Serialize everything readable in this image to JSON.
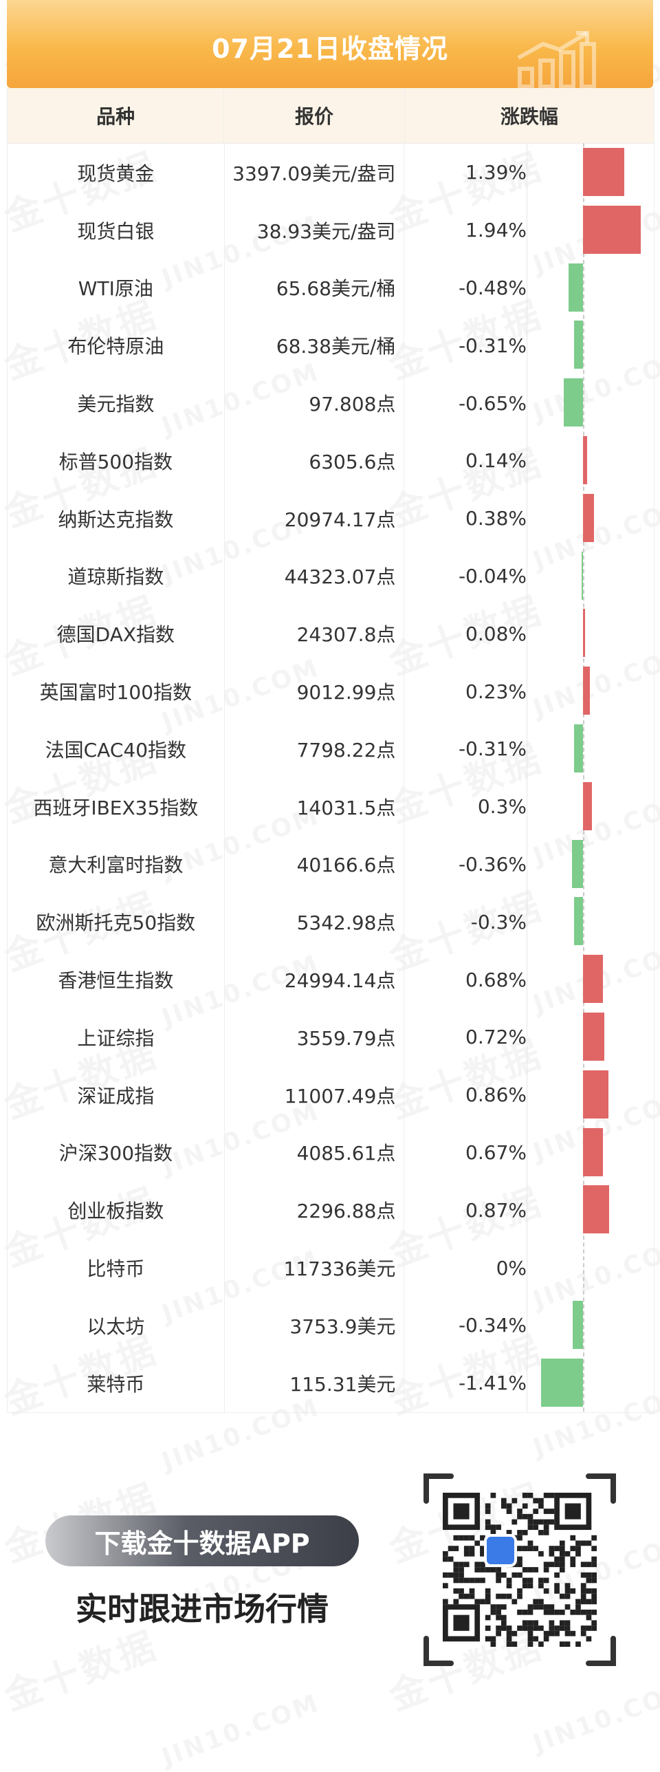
{
  "banner": {
    "title": "07月21日收盘情况",
    "icon": "bar-chart-arrow-icon"
  },
  "table": {
    "headers": [
      "品种",
      "报价",
      "涨跌幅"
    ],
    "max_abs_change": 1.94,
    "rows": [
      {
        "name": "现货黄金",
        "price": "3397.09美元/盎司",
        "change_text": "1.39%",
        "change": 1.39
      },
      {
        "name": "现货白银",
        "price": "38.93美元/盎司",
        "change_text": "1.94%",
        "change": 1.94
      },
      {
        "name": "WTI原油",
        "price": "65.68美元/桶",
        "change_text": "-0.48%",
        "change": -0.48
      },
      {
        "name": "布伦特原油",
        "price": "68.38美元/桶",
        "change_text": "-0.31%",
        "change": -0.31
      },
      {
        "name": "美元指数",
        "price": "97.808点",
        "change_text": "-0.65%",
        "change": -0.65
      },
      {
        "name": "标普500指数",
        "price": "6305.6点",
        "change_text": "0.14%",
        "change": 0.14
      },
      {
        "name": "纳斯达克指数",
        "price": "20974.17点",
        "change_text": "0.38%",
        "change": 0.38
      },
      {
        "name": "道琼斯指数",
        "price": "44323.07点",
        "change_text": "-0.04%",
        "change": -0.04
      },
      {
        "name": "德国DAX指数",
        "price": "24307.8点",
        "change_text": "0.08%",
        "change": 0.08
      },
      {
        "name": "英国富时100指数",
        "price": "9012.99点",
        "change_text": "0.23%",
        "change": 0.23
      },
      {
        "name": "法国CAC40指数",
        "price": "7798.22点",
        "change_text": "-0.31%",
        "change": -0.31
      },
      {
        "name": "西班牙IBEX35指数",
        "price": "14031.5点",
        "change_text": "0.3%",
        "change": 0.3
      },
      {
        "name": "意大利富时指数",
        "price": "40166.6点",
        "change_text": "-0.36%",
        "change": -0.36
      },
      {
        "name": "欧洲斯托克50指数",
        "price": "5342.98点",
        "change_text": "-0.3%",
        "change": -0.3
      },
      {
        "name": "香港恒生指数",
        "price": "24994.14点",
        "change_text": "0.68%",
        "change": 0.68
      },
      {
        "name": "上证综指",
        "price": "3559.79点",
        "change_text": "0.72%",
        "change": 0.72
      },
      {
        "name": "深证成指",
        "price": "11007.49点",
        "change_text": "0.86%",
        "change": 0.86
      },
      {
        "name": "沪深300指数",
        "price": "4085.61点",
        "change_text": "0.67%",
        "change": 0.67
      },
      {
        "name": "创业板指数",
        "price": "2296.88点",
        "change_text": "0.87%",
        "change": 0.87
      },
      {
        "name": "比特币",
        "price": "117336美元",
        "change_text": "0%",
        "change": 0
      },
      {
        "name": "以太坊",
        "price": "3753.9美元",
        "change_text": "-0.34%",
        "change": -0.34
      },
      {
        "name": "莱特币",
        "price": "115.31美元",
        "change_text": "-1.41%",
        "change": -1.41
      }
    ]
  },
  "colors": {
    "up": "#e06666",
    "down": "#7dcc8b",
    "banner": "#f9b84a"
  },
  "watermark": {
    "cn": "金十数据",
    "en": "JIN10.COM"
  },
  "footer": {
    "download_label": "下载金十数据APP",
    "slogan": "实时跟进市场行情",
    "qr_icon": "qr-code-icon"
  }
}
